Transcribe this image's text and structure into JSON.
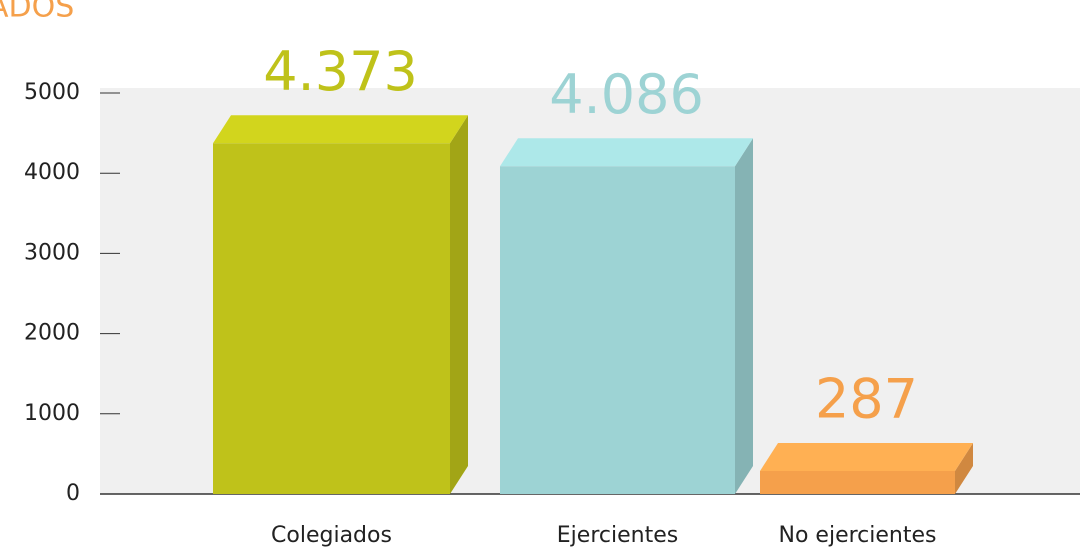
{
  "chart_data": {
    "type": "bar",
    "title": "ADOS",
    "categories": [
      "Colegiados",
      "Ejercientes",
      "No ejercientes"
    ],
    "values": [
      4373,
      4086,
      287
    ],
    "value_labels": [
      "4.373",
      "4.086",
      "287"
    ],
    "colors": [
      "#bfc21a",
      "#9dd3d4",
      "#f5a04b"
    ],
    "ylim": [
      0,
      5000
    ],
    "yticks": [
      0,
      1000,
      2000,
      3000,
      4000,
      5000
    ]
  }
}
